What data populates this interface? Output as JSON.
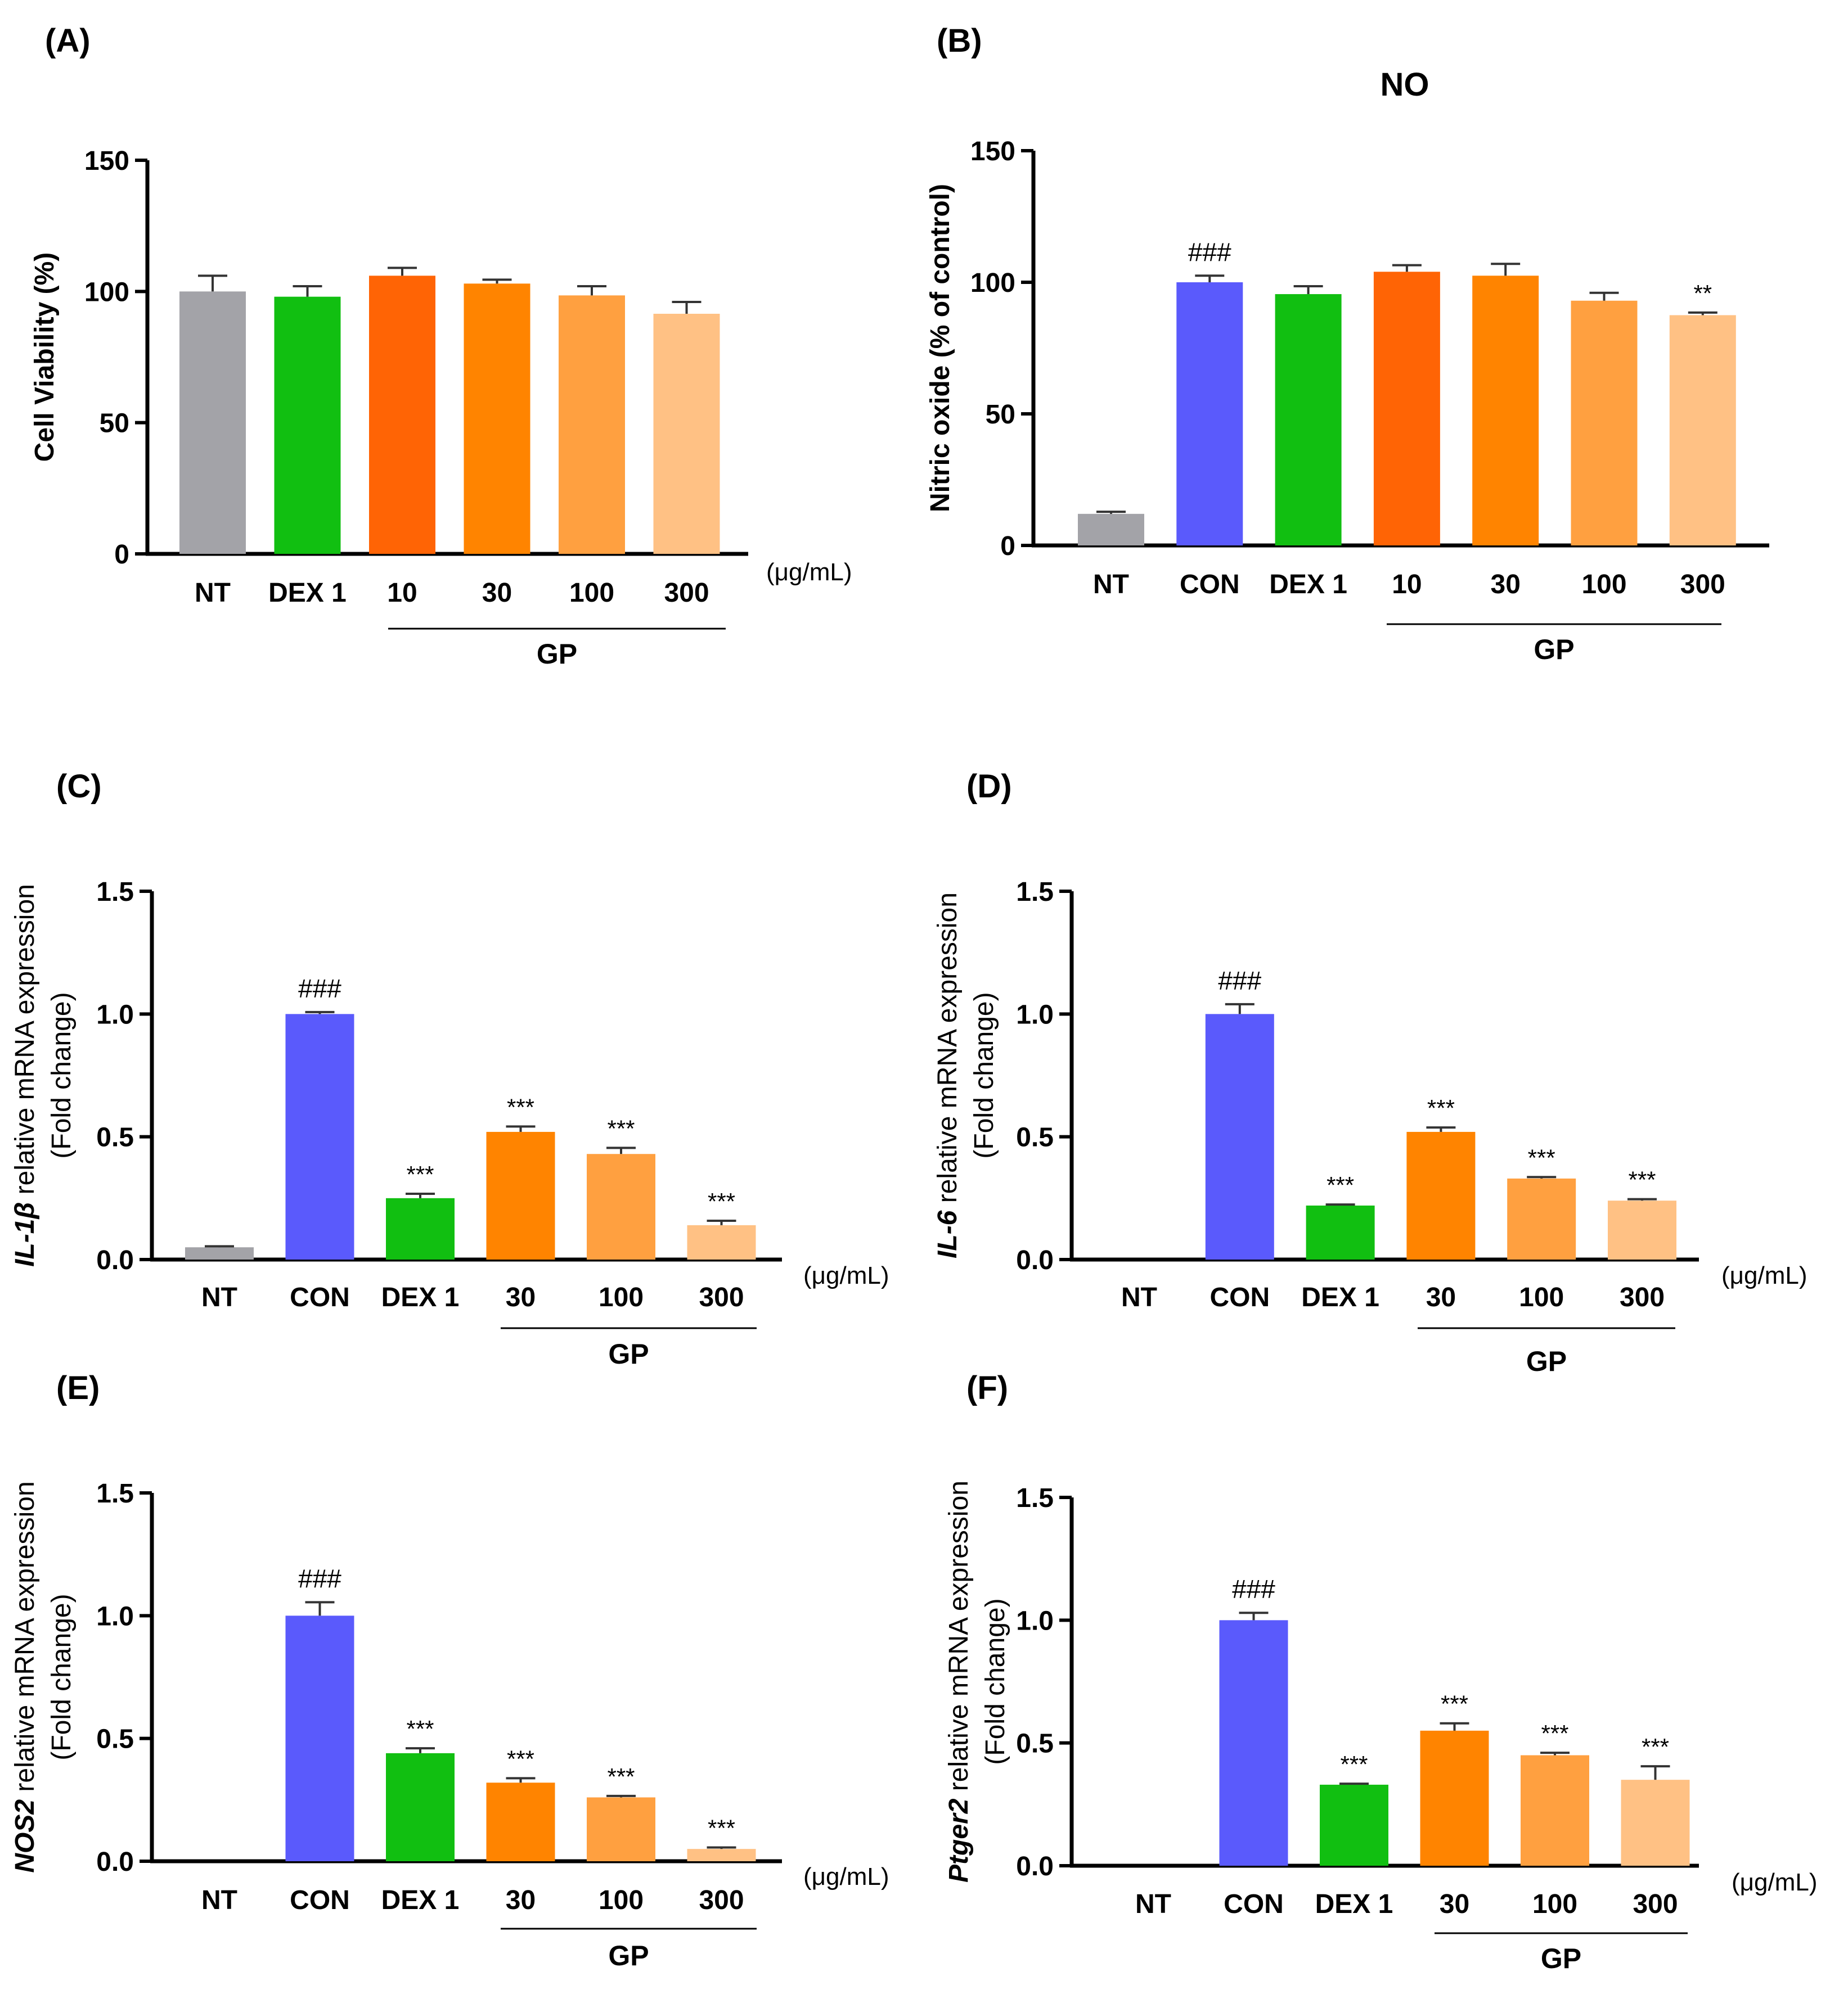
{
  "chart_data": [
    {
      "panel": "(A)",
      "type": "bar",
      "title": "",
      "ylabel": "Cell Viability (%)",
      "ylim": [
        0,
        150
      ],
      "yticks": [
        "0",
        "50",
        "100",
        "150"
      ],
      "categories": [
        "NT",
        "DEX 1",
        "10",
        "30",
        "100",
        "300"
      ],
      "values": [
        100,
        98,
        106,
        103,
        98.5,
        91.5
      ],
      "errors": [
        6,
        4,
        3,
        1.5,
        3.5,
        4.5
      ],
      "colors": [
        "#a3a3a8",
        "#11bf11",
        "#ff6405",
        "#ff8400",
        "#ffa040",
        "#ffc184"
      ],
      "significance": [
        "",
        "",
        "",
        "",
        "",
        ""
      ],
      "unit": "(μg/mL)",
      "group": {
        "label": "GP",
        "from": 2,
        "to": 5
      }
    },
    {
      "panel": "(B)",
      "type": "bar",
      "title": "NO",
      "ylabel": "Nitric oxide (% of control)",
      "ylim": [
        0,
        150
      ],
      "yticks": [
        "0",
        "50",
        "100",
        "150"
      ],
      "categories": [
        "NT",
        "CON",
        "DEX 1",
        "10",
        "30",
        "100",
        "300"
      ],
      "values": [
        12,
        100,
        95.5,
        104,
        102.5,
        93,
        87.5
      ],
      "errors": [
        0.8,
        2.5,
        3,
        2.5,
        4.5,
        3,
        1
      ],
      "colors": [
        "#a3a3a8",
        "#5a5afc",
        "#11bf11",
        "#ff6405",
        "#ff8400",
        "#ffa040",
        "#ffc184"
      ],
      "significance": [
        "",
        "###",
        "",
        "",
        "",
        "",
        "**"
      ],
      "unit": "",
      "group": {
        "label": "GP",
        "from": 3,
        "to": 6
      }
    },
    {
      "panel": "(C)",
      "type": "bar",
      "title": "",
      "ylabel_gene": "IL-1β",
      "ylabel": " relative mRNA expression",
      "ylabel2": "(Fold change)",
      "ylim": [
        0,
        1.5
      ],
      "yticks": [
        "0.0",
        "0.5",
        "1.0",
        "1.5"
      ],
      "categories": [
        "NT",
        "CON",
        "DEX 1",
        "30",
        "100",
        "300"
      ],
      "values": [
        0.05,
        1.0,
        0.25,
        0.52,
        0.43,
        0.14
      ],
      "errors": [
        0.004,
        0.008,
        0.018,
        0.022,
        0.025,
        0.018
      ],
      "colors": [
        "#a3a3a8",
        "#5a5afc",
        "#11bf11",
        "#ff8400",
        "#ffa040",
        "#ffc184"
      ],
      "significance": [
        "",
        "###",
        "***",
        "***",
        "***",
        "***"
      ],
      "unit": "(μg/mL)",
      "group": {
        "label": "GP",
        "from": 3,
        "to": 5
      }
    },
    {
      "panel": "(D)",
      "type": "bar",
      "title": "",
      "ylabel_gene": "IL-6",
      "ylabel": " relative mRNA expression",
      "ylabel2": "(Fold change)",
      "ylim": [
        0,
        1.5
      ],
      "yticks": [
        "0.0",
        "0.5",
        "1.0",
        "1.5"
      ],
      "categories": [
        "NT",
        "CON",
        "DEX 1",
        "30",
        "100",
        "300"
      ],
      "values": [
        0.0,
        1.0,
        0.22,
        0.52,
        0.33,
        0.24
      ],
      "errors": [
        0,
        0.04,
        0.004,
        0.018,
        0.006,
        0.006
      ],
      "colors": [
        "#a3a3a8",
        "#5a5afc",
        "#11bf11",
        "#ff8400",
        "#ffa040",
        "#ffc184"
      ],
      "significance": [
        "",
        "###",
        "***",
        "***",
        "***",
        "***"
      ],
      "unit": "(μg/mL)",
      "group": {
        "label": "GP",
        "from": 3,
        "to": 5
      }
    },
    {
      "panel": "(E)",
      "type": "bar",
      "title": "",
      "ylabel_gene": "NOS2",
      "ylabel": " relative mRNA expression",
      "ylabel2": "(Fold change)",
      "ylim": [
        0,
        1.5
      ],
      "yticks": [
        "0.0",
        "0.5",
        "1.0",
        "1.5"
      ],
      "categories": [
        "NT",
        "CON",
        "DEX 1",
        "30",
        "100",
        "300"
      ],
      "values": [
        0.0,
        1.0,
        0.44,
        0.32,
        0.26,
        0.05
      ],
      "errors": [
        0,
        0.055,
        0.02,
        0.018,
        0.006,
        0.006
      ],
      "colors": [
        "#a3a3a8",
        "#5a5afc",
        "#11bf11",
        "#ff8400",
        "#ffa040",
        "#ffc184"
      ],
      "significance": [
        "",
        "###",
        "***",
        "***",
        "***",
        "***"
      ],
      "unit": "(μg/mL)",
      "group": {
        "label": "GP",
        "from": 3,
        "to": 5
      }
    },
    {
      "panel": "(F)",
      "type": "bar",
      "title": "",
      "ylabel_gene": "Ptger2",
      "ylabel": " relative mRNA expression",
      "ylabel2": "(Fold change)",
      "ylim": [
        0,
        1.5
      ],
      "yticks": [
        "0.0",
        "0.5",
        "1.0",
        "1.5"
      ],
      "categories": [
        "NT",
        "CON",
        "DEX 1",
        "30",
        "100",
        "300"
      ],
      "values": [
        0.0,
        1.0,
        0.33,
        0.55,
        0.45,
        0.35
      ],
      "errors": [
        0,
        0.03,
        0.004,
        0.03,
        0.01,
        0.055
      ],
      "colors": [
        "#a3a3a8",
        "#5a5afc",
        "#11bf11",
        "#ff8400",
        "#ffa040",
        "#ffc184"
      ],
      "significance": [
        "",
        "###",
        "***",
        "***",
        "***",
        "***"
      ],
      "unit": "(μg/mL)",
      "group": {
        "label": "GP",
        "from": 3,
        "to": 5
      }
    }
  ]
}
